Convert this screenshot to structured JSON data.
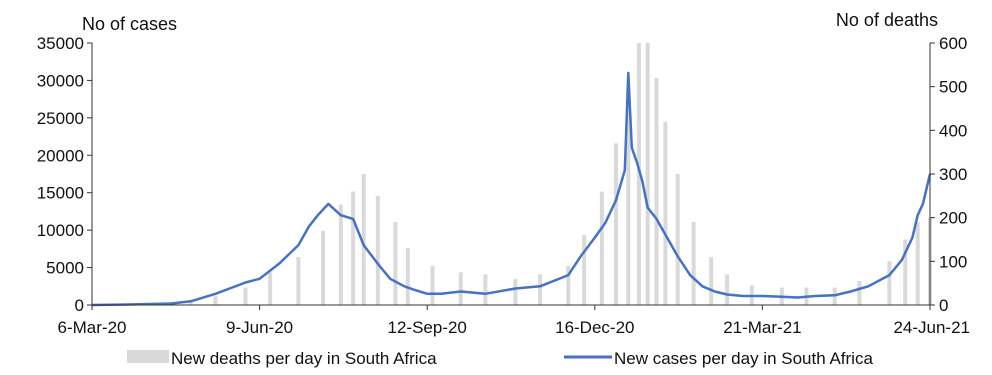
{
  "chart_data": {
    "type": "bar+line",
    "title": "",
    "left_axis": {
      "label": "No of cases",
      "range": [
        0,
        35000
      ],
      "ticks": [
        "0",
        "5000",
        "10000",
        "15000",
        "20000",
        "25000",
        "30000",
        "35000"
      ]
    },
    "right_axis": {
      "label": "No of deaths",
      "range": [
        0,
        600
      ],
      "ticks": [
        "0",
        "100",
        "200",
        "300",
        "400",
        "500",
        "600"
      ]
    },
    "x_axis": {
      "start": "2020-03-06",
      "end": "2021-06-24",
      "tick_labels": [
        "6-Mar-20",
        "9-Jun-20",
        "12-Sep-20",
        "16-Dec-20",
        "21-Mar-21",
        "24-Jun-21"
      ]
    },
    "grid": false,
    "legend_position": "bottom",
    "series": [
      {
        "name": "New deaths per day in South Africa",
        "type": "bar",
        "axis": "right",
        "color": "#d9d9d9",
        "x": [
          "2020-03-06",
          "2020-04-01",
          "2020-05-01",
          "2020-05-15",
          "2020-06-01",
          "2020-06-15",
          "2020-07-01",
          "2020-07-15",
          "2020-07-25",
          "2020-08-01",
          "2020-08-07",
          "2020-08-15",
          "2020-08-25",
          "2020-09-01",
          "2020-09-15",
          "2020-10-01",
          "2020-10-15",
          "2020-11-01",
          "2020-11-15",
          "2020-12-01",
          "2020-12-10",
          "2020-12-20",
          "2020-12-28",
          "2021-01-04",
          "2021-01-10",
          "2021-01-15",
          "2021-01-20",
          "2021-01-25",
          "2021-02-01",
          "2021-02-10",
          "2021-02-20",
          "2021-03-01",
          "2021-03-15",
          "2021-04-01",
          "2021-04-15",
          "2021-05-01",
          "2021-05-15",
          "2021-06-01",
          "2021-06-10",
          "2021-06-17",
          "2021-06-24"
        ],
        "values": [
          0,
          2,
          8,
          20,
          40,
          75,
          110,
          170,
          230,
          260,
          300,
          250,
          190,
          130,
          90,
          75,
          70,
          60,
          70,
          90,
          160,
          260,
          370,
          500,
          600,
          600,
          520,
          420,
          300,
          190,
          110,
          70,
          45,
          40,
          40,
          40,
          55,
          100,
          150,
          190,
          200
        ]
      },
      {
        "name": "New cases per day in South Africa",
        "type": "line",
        "axis": "left",
        "color": "#4472c4",
        "x": [
          "2020-03-06",
          "2020-04-01",
          "2020-04-20",
          "2020-05-01",
          "2020-05-15",
          "2020-06-01",
          "2020-06-09",
          "2020-06-20",
          "2020-07-01",
          "2020-07-07",
          "2020-07-12",
          "2020-07-18",
          "2020-07-25",
          "2020-08-01",
          "2020-08-07",
          "2020-08-15",
          "2020-08-22",
          "2020-08-30",
          "2020-09-05",
          "2020-09-12",
          "2020-09-20",
          "2020-10-01",
          "2020-10-15",
          "2020-11-01",
          "2020-11-15",
          "2020-12-01",
          "2020-12-08",
          "2020-12-16",
          "2020-12-22",
          "2020-12-28",
          "2021-01-02",
          "2021-01-04",
          "2021-01-06",
          "2021-01-09",
          "2021-01-12",
          "2021-01-15",
          "2021-01-20",
          "2021-01-26",
          "2021-02-01",
          "2021-02-08",
          "2021-02-15",
          "2021-02-22",
          "2021-03-01",
          "2021-03-10",
          "2021-03-21",
          "2021-04-01",
          "2021-04-10",
          "2021-04-20",
          "2021-05-01",
          "2021-05-10",
          "2021-05-20",
          "2021-06-01",
          "2021-06-08",
          "2021-06-14",
          "2021-06-17",
          "2021-06-20",
          "2021-06-24"
        ],
        "values": [
          0,
          100,
          200,
          500,
          1500,
          3000,
          3500,
          5500,
          8000,
          10500,
          12000,
          13500,
          12000,
          11500,
          8000,
          5500,
          3500,
          2500,
          2000,
          1500,
          1500,
          1800,
          1500,
          2200,
          2500,
          4000,
          6500,
          9000,
          11000,
          14000,
          18000,
          31000,
          21000,
          19000,
          16500,
          13000,
          11500,
          9000,
          6500,
          4000,
          2500,
          1800,
          1400,
          1200,
          1200,
          1100,
          1000,
          1200,
          1300,
          1800,
          2500,
          4000,
          6000,
          9000,
          12000,
          13500,
          17500
        ]
      }
    ]
  }
}
